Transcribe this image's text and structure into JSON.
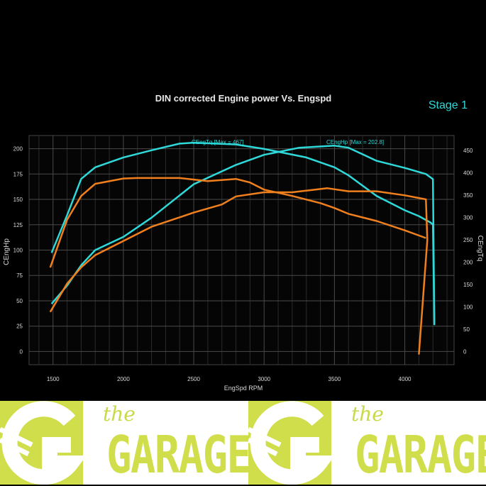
{
  "header": {
    "stage_label": "Stage 1"
  },
  "chart_data": {
    "type": "line",
    "title": "DIN corrected Engine power Vs. Engspd",
    "xlabel": "EngSpd RPM",
    "ylabel": "CEngHp",
    "y2label": "CEngTq",
    "xlim": [
      1330,
      4350
    ],
    "ylim": [
      -13,
      213
    ],
    "y2lim": [
      -29,
      483
    ],
    "xticks": [
      1500,
      2000,
      2500,
      3000,
      3500,
      4000
    ],
    "yticks": [
      0,
      25,
      50,
      75,
      100,
      125,
      150,
      175,
      200
    ],
    "y2ticks": [
      0,
      50,
      100,
      150,
      200,
      250,
      300,
      350,
      400,
      450
    ],
    "grid": true,
    "annotations": [
      "CEngTq [Max = 467]",
      "CEngHp [Max = 202.8]"
    ],
    "colors": {
      "stage1": "#2fd9d9",
      "stock": "#f0801e",
      "background": "#000000",
      "grid": "#3a3a3a",
      "text": "#d8d8d8"
    },
    "series": [
      {
        "axis": "left",
        "color": "stage1",
        "x": [
          1490,
          1600,
          1700,
          1800,
          2000,
          2200,
          2500,
          2800,
          3000,
          3250,
          3500,
          3600,
          3800,
          4000,
          4150,
          4200,
          4210
        ],
        "y": [
          47,
          65,
          85,
          100,
          113,
          132,
          165,
          184,
          194,
          201,
          203,
          201,
          188,
          181,
          175,
          170,
          26
        ]
      },
      {
        "axis": "right",
        "color": "stage1",
        "x": [
          1490,
          1600,
          1700,
          1800,
          2000,
          2200,
          2400,
          2500,
          2800,
          3000,
          3300,
          3500,
          3600,
          3800,
          4000,
          4100,
          4180,
          4200,
          4210
        ],
        "y": [
          221,
          305,
          386,
          412,
          434,
          450,
          465,
          467,
          463,
          453,
          434,
          412,
          394,
          348,
          316,
          303,
          289,
          284,
          62
        ]
      },
      {
        "axis": "left",
        "color": "stock",
        "x": [
          1480,
          1600,
          1700,
          1800,
          2000,
          2200,
          2500,
          2700,
          2800,
          3000,
          3200,
          3450,
          3600,
          3800,
          4000,
          4150,
          4160,
          4100
        ],
        "y": [
          39,
          67,
          83,
          95,
          109,
          123,
          137,
          145,
          153,
          157,
          157,
          161,
          158,
          158,
          154,
          150,
          110,
          -3
        ]
      },
      {
        "axis": "right",
        "color": "stock",
        "x": [
          1480,
          1600,
          1700,
          1800,
          2000,
          2100,
          2400,
          2600,
          2800,
          2900,
          3000,
          3200,
          3400,
          3500,
          3600,
          3800,
          4000,
          4150
        ],
        "y": [
          188,
          295,
          348,
          375,
          387,
          388,
          388,
          381,
          386,
          378,
          362,
          348,
          332,
          321,
          308,
          292,
          271,
          254
        ]
      }
    ]
  },
  "footer": {
    "logos": [
      {
        "script": "the",
        "word": "GARAGE"
      },
      {
        "script": "the",
        "word": "GARAGE"
      }
    ]
  }
}
